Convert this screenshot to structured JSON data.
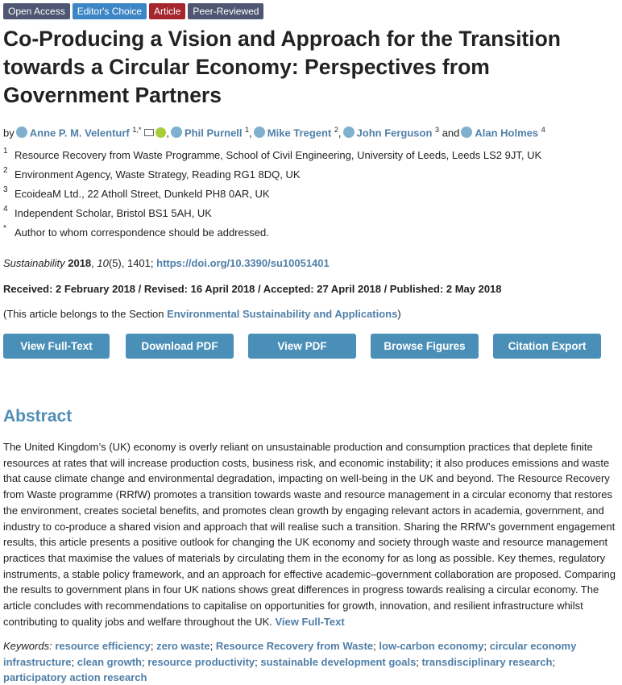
{
  "badges": [
    "Open Access",
    "Editor's Choice",
    "Article",
    "Peer-Reviewed"
  ],
  "title": "Co-Producing a Vision and Approach for the Transition towards a Circular Economy: Perspectives from Government Partners",
  "byline": {
    "by": "by",
    "and": "and",
    "separator": ",",
    "authors": [
      {
        "name": "Anne P. M. Velenturf",
        "sup": "1,*"
      },
      {
        "name": "Phil Purnell",
        "sup": "1"
      },
      {
        "name": "Mike Tregent",
        "sup": "2"
      },
      {
        "name": "John Ferguson",
        "sup": "3"
      },
      {
        "name": "Alan Holmes",
        "sup": "4"
      }
    ]
  },
  "affiliations": [
    {
      "mark": "1",
      "text": "Resource Recovery from Waste Programme, School of Civil Engineering, University of Leeds, Leeds LS2 9JT, UK"
    },
    {
      "mark": "2",
      "text": "Environment Agency, Waste Strategy, Reading RG1 8DQ, UK"
    },
    {
      "mark": "3",
      "text": "EcoideaM Ltd., 22 Atholl Street, Dunkeld PH8 0AR, UK"
    },
    {
      "mark": "4",
      "text": "Independent Scholar, Bristol BS1 5AH, UK"
    },
    {
      "mark": "*",
      "text": "Author to whom correspondence should be addressed."
    }
  ],
  "citation": {
    "journal": "Sustainability",
    "year": "2018",
    "volume": "10",
    "rest": "(5), 1401;",
    "doi": "https://doi.org/10.3390/su10051401"
  },
  "dates": "Received: 2 February 2018 / Revised: 16 April 2018 / Accepted: 27 April 2018 / Published: 2 May 2018",
  "section": {
    "prefix": "(This article belongs to the Section",
    "name": "Environmental Sustainability and Applications",
    "suffix": ")"
  },
  "buttons": [
    "View Full-Text",
    "Download PDF",
    "View PDF",
    "Browse Figures",
    "Citation Export"
  ],
  "abstract": {
    "heading": "Abstract",
    "text": "The United Kingdom’s (UK) economy is overly reliant on unsustainable production and consumption practices that deplete finite resources at rates that will increase production costs, business risk, and economic instability; it also produces emissions and waste that cause climate change and environmental degradation, impacting on well-being in the UK and beyond. The Resource Recovery from Waste programme (RRfW) promotes a transition towards waste and resource management in a circular economy that restores the environment, creates societal benefits, and promotes clean growth by engaging relevant actors in academia, government, and industry to co-produce a shared vision and approach that will realise such a transition. Sharing the RRfW’s government engagement results, this article presents a positive outlook for changing the UK economy and society through waste and resource management practices that maximise the values of materials by circulating them in the economy for as long as possible. Key themes, regulatory instruments, a stable policy framework, and an approach for effective academic–government collaboration are proposed. Comparing the results to government plans in four UK nations shows great differences in progress towards realising a circular economy. The article concludes with recommendations to capitalise on opportunities for growth, innovation, and resilient infrastructure whilst contributing to quality jobs and welfare throughout the UK.",
    "link": "View Full-Text"
  },
  "keywords": {
    "label": "Keywords:",
    "separator": ";",
    "items": [
      "resource efficiency",
      "zero waste",
      "Resource Recovery from Waste",
      "low-carbon economy",
      "circular economy infrastructure",
      "clean growth",
      "resource productivity",
      "sustainable development goals",
      "transdisciplinary research",
      "participatory action research"
    ]
  }
}
